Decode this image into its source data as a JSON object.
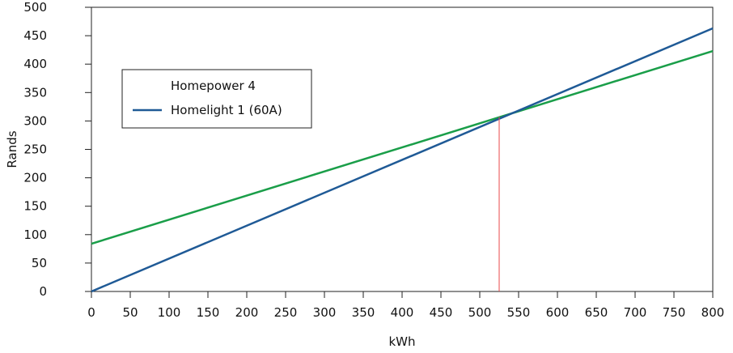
{
  "chart_data": {
    "type": "line",
    "xlabel": "kWh",
    "ylabel": "Rands",
    "xlim": [
      0,
      800
    ],
    "ylim": [
      0,
      500
    ],
    "xticks": [
      0,
      50,
      100,
      150,
      200,
      250,
      300,
      350,
      400,
      450,
      500,
      550,
      600,
      650,
      700,
      750,
      800
    ],
    "yticks": [
      0,
      50,
      100,
      150,
      200,
      250,
      300,
      350,
      400,
      450,
      500
    ],
    "grid": false,
    "legend_position": "upper-left",
    "series": [
      {
        "name": "Homepower 4",
        "color": "#1a9e49",
        "x": [
          0,
          800
        ],
        "y": [
          84,
          423
        ]
      },
      {
        "name": "Homelight 1 (60A)",
        "color": "#1f5a96",
        "x": [
          0,
          800
        ],
        "y": [
          0,
          463
        ]
      }
    ],
    "annotations": [
      {
        "type": "vertical-line",
        "x": 525,
        "y": [
          0,
          307
        ],
        "color": "#e8474a"
      }
    ]
  }
}
